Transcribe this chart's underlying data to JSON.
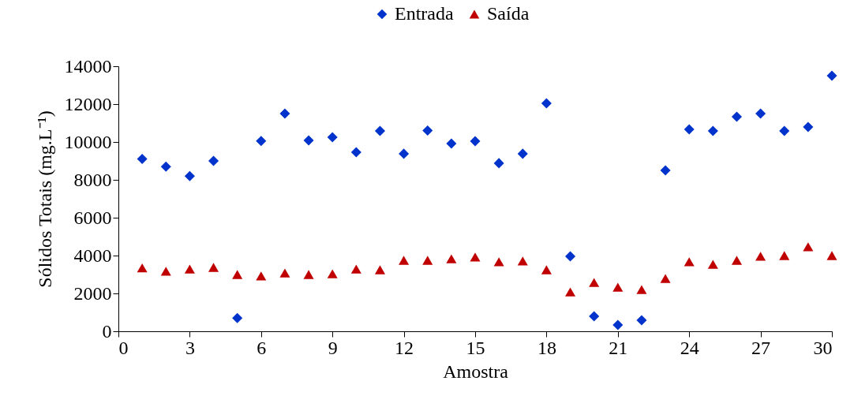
{
  "chart_data": {
    "type": "scatter",
    "xlabel": "Amostra",
    "ylabel": "Sólidos Totais (mg.L⁻¹)",
    "x": [
      1,
      2,
      3,
      4,
      5,
      6,
      7,
      8,
      9,
      10,
      11,
      12,
      13,
      14,
      15,
      16,
      17,
      18,
      19,
      20,
      21,
      22,
      23,
      24,
      25,
      26,
      27,
      28,
      29,
      30
    ],
    "series": [
      {
        "name": "Entrada",
        "color": "#0033cc",
        "marker": "diamond",
        "values": [
          9100,
          8700,
          8200,
          9000,
          700,
          10050,
          11500,
          10080,
          10250,
          9460,
          10580,
          9380,
          10600,
          9920,
          10040,
          8880,
          9380,
          12040,
          3960,
          790,
          330,
          580,
          8500,
          10670,
          10580,
          11330,
          11500,
          10580,
          10790,
          13500
        ]
      },
      {
        "name": "Saída",
        "color": "#c00000",
        "marker": "triangle",
        "values": [
          3350,
          3170,
          3290,
          3375,
          3000,
          2920,
          3080,
          3000,
          3040,
          3290,
          3250,
          3750,
          3750,
          3830,
          3920,
          3670,
          3710,
          3250,
          2080,
          2580,
          2330,
          2200,
          2790,
          3670,
          3540,
          3750,
          3960,
          4000,
          4460,
          4000
        ]
      }
    ],
    "xlim": [
      0,
      30
    ],
    "xticks": [
      0,
      3,
      6,
      9,
      12,
      15,
      18,
      21,
      24,
      27,
      30
    ],
    "ylim": [
      0,
      14000
    ],
    "yticks": [
      0,
      2000,
      4000,
      6000,
      8000,
      10000,
      12000,
      14000
    ],
    "grid": false,
    "legend": "top"
  }
}
